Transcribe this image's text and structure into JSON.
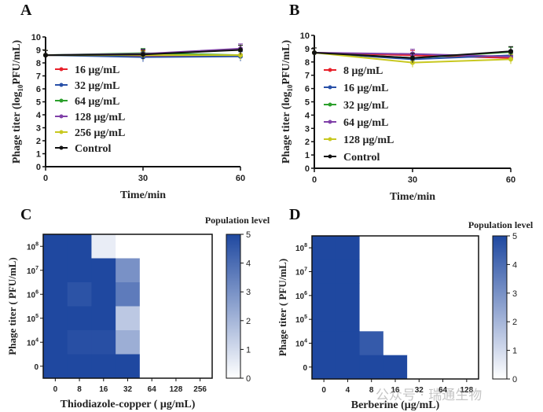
{
  "panels": {
    "A": "A",
    "B": "B",
    "C": "C",
    "D": "D"
  },
  "watermark": "公众号 · 瑞通生物",
  "chart_data": [
    {
      "id": "A",
      "type": "line",
      "title": "",
      "xlabel": "Time/min",
      "ylabel": "Phage titer (log10 PFU/mL)",
      "ylabel_parts": {
        "pre": "Phage titer (log",
        "sub": "10",
        "post": "PFU/mL)"
      },
      "x": [
        0,
        30,
        60
      ],
      "xticks": [
        "0",
        "30",
        "60"
      ],
      "yticks": [
        "0",
        "1",
        "2",
        "3",
        "4",
        "5",
        "6",
        "7",
        "8",
        "9",
        "10"
      ],
      "ylim": [
        0,
        10
      ],
      "xlim": [
        0,
        60
      ],
      "legend_position": "center-left",
      "series": [
        {
          "name": "16 μg/mL",
          "color": "#e8202a",
          "values": [
            8.6,
            8.55,
            8.6
          ]
        },
        {
          "name": "32 μg/mL",
          "color": "#2850a8",
          "values": [
            8.6,
            8.45,
            8.5
          ]
        },
        {
          "name": "64 μg/mL",
          "color": "#2ca02c",
          "values": [
            8.6,
            8.75,
            8.6
          ]
        },
        {
          "name": "128 μg/mL",
          "color": "#8040a8",
          "values": [
            8.6,
            8.7,
            9.1
          ]
        },
        {
          "name": "256 μg/mL",
          "color": "#c8c820",
          "values": [
            8.6,
            8.6,
            8.6
          ]
        },
        {
          "name": "Control",
          "color": "#111111",
          "values": [
            8.6,
            8.65,
            9.0
          ]
        }
      ]
    },
    {
      "id": "B",
      "type": "line",
      "title": "",
      "xlabel": "Time/min",
      "ylabel": "Phage titer (log10 PFU/mL)",
      "ylabel_parts": {
        "pre": "Phage titer (log",
        "sub": "10",
        "post": "PFU/mL)"
      },
      "x": [
        0,
        30,
        60
      ],
      "xticks": [
        "0",
        "30",
        "60"
      ],
      "yticks": [
        "0",
        "1",
        "2",
        "3",
        "4",
        "5",
        "6",
        "7",
        "8",
        "9",
        "10"
      ],
      "ylim": [
        0,
        10
      ],
      "xlim": [
        0,
        60
      ],
      "legend_position": "center-left",
      "series": [
        {
          "name": "8 μg/mL",
          "color": "#e8202a",
          "values": [
            8.7,
            8.5,
            8.3
          ]
        },
        {
          "name": "16 μg/mL",
          "color": "#2850a8",
          "values": [
            8.7,
            8.2,
            8.5
          ]
        },
        {
          "name": "32 μg/mL",
          "color": "#2ca02c",
          "values": [
            8.7,
            8.3,
            8.75
          ]
        },
        {
          "name": "64 μg/mL",
          "color": "#8040a8",
          "values": [
            8.7,
            8.6,
            8.4
          ]
        },
        {
          "name": "128 μg/mL",
          "color": "#c8c820",
          "values": [
            8.7,
            7.95,
            8.2
          ]
        },
        {
          "name": "Control",
          "color": "#111111",
          "values": [
            8.7,
            8.3,
            8.8
          ]
        }
      ]
    },
    {
      "id": "C",
      "type": "heatmap",
      "xlabel": "Thiodiazole-copper ( μg/mL)",
      "ylabel": "Phage titer ( PFU/mL)",
      "x_categories": [
        "0",
        "8",
        "16",
        "32",
        "64",
        "128",
        "256"
      ],
      "y_categories": [
        "10^8",
        "10^7",
        "10^6",
        "10^5",
        "10^4",
        "0"
      ],
      "colorbar": {
        "title": "Population level",
        "range": [
          0,
          5
        ],
        "ticks": [
          "0",
          "1",
          "2",
          "3",
          "4",
          "5"
        ],
        "low_color": "#ffffff",
        "high_color": "#1f48a0"
      },
      "values": [
        [
          5,
          5,
          0.5,
          0,
          0,
          0,
          0
        ],
        [
          5,
          5,
          5,
          3,
          0,
          0,
          0
        ],
        [
          5,
          4.7,
          5,
          3.6,
          0,
          0,
          0
        ],
        [
          5,
          5,
          5,
          1.5,
          0,
          0,
          0
        ],
        [
          5,
          4.8,
          4.8,
          2.2,
          0,
          0,
          0
        ],
        [
          5,
          5,
          5,
          5,
          0,
          0,
          0
        ]
      ]
    },
    {
      "id": "D",
      "type": "heatmap",
      "xlabel": "Berberine (μg/mL)",
      "ylabel": "Phage titer ( PFU/mL)",
      "x_categories": [
        "0",
        "4",
        "8",
        "16",
        "32",
        "64",
        "128"
      ],
      "y_categories": [
        "10^8",
        "10^7",
        "10^6",
        "10^5",
        "10^4",
        "0"
      ],
      "colorbar": {
        "title": "Population level",
        "range": [
          0,
          5
        ],
        "ticks": [
          "0",
          "1",
          "2",
          "3",
          "4",
          "5"
        ],
        "low_color": "#ffffff",
        "high_color": "#1f48a0"
      },
      "values": [
        [
          5,
          5,
          0,
          0,
          0,
          0,
          0
        ],
        [
          5,
          5,
          0,
          0,
          0,
          0,
          0
        ],
        [
          5,
          5,
          0,
          0,
          0,
          0,
          0
        ],
        [
          5,
          5,
          0,
          0,
          0,
          0,
          0
        ],
        [
          5,
          5,
          4.5,
          0,
          0,
          0,
          0
        ],
        [
          5,
          5,
          5,
          5,
          0,
          0,
          0
        ]
      ]
    }
  ]
}
